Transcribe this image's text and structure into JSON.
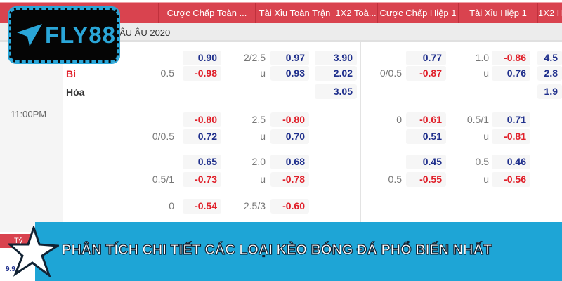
{
  "header": {
    "columns": [
      "Cược Chấp Toàn ...",
      "Tài Xỉu Toàn Trận",
      "1X2 Toà...",
      "Cược Chấp Hiệp 1",
      "Tài Xỉu Hiệp 1",
      "1X2 H"
    ]
  },
  "league": "ÂU ÂU 2020",
  "match": {
    "time": "11:00PM",
    "team": "Bi",
    "draw": "Hòa"
  },
  "logo": "FLY88",
  "rows": [
    {
      "hc": [
        "",
        "0.90"
      ],
      "ou": [
        "2/2.5",
        "0.97"
      ],
      "x12": "3.90",
      "h1hc": [
        "",
        "0.77"
      ],
      "h1ou": [
        "1.0",
        "-0.86"
      ],
      "h1x12": "4.5"
    },
    {
      "hc": [
        "0.5",
        "-0.98"
      ],
      "ou": [
        "u",
        "0.93"
      ],
      "x12": "2.02",
      "h1hc": [
        "0/0.5",
        "-0.87"
      ],
      "h1ou": [
        "u",
        "0.76"
      ],
      "h1x12": "2.8"
    },
    {
      "x12": "3.05",
      "h1x12": "1.9"
    },
    {
      "hc": [
        "",
        "-0.80"
      ],
      "ou": [
        "2.5",
        "-0.80"
      ],
      "h1hc": [
        "0",
        "-0.61"
      ],
      "h1ou": [
        "0.5/1",
        "0.71"
      ]
    },
    {
      "hc": [
        "0/0.5",
        "0.72"
      ],
      "ou": [
        "u",
        "0.70"
      ],
      "h1hc": [
        "",
        "0.51"
      ],
      "h1ou": [
        "u",
        "-0.81"
      ]
    },
    {
      "hc": [
        "",
        "0.65"
      ],
      "ou": [
        "2.0",
        "0.68"
      ],
      "h1hc": [
        "",
        "0.45"
      ],
      "h1ou": [
        "0.5",
        "0.46"
      ]
    },
    {
      "hc": [
        "0.5/1",
        "-0.73"
      ],
      "ou": [
        "u",
        "-0.78"
      ],
      "h1hc": [
        "0.5",
        "-0.55"
      ],
      "h1ou": [
        "u",
        "-0.56"
      ]
    },
    {
      "hc": [
        "0",
        "-0.54"
      ],
      "ou": [
        "2.5/3",
        "-0.60"
      ]
    }
  ],
  "banner": "PHÂN TÍCH CHI TIẾT CÁC LOẠI KÈO BÓNG ĐÁ PHỔ BIẾN NHẤT",
  "mini": {
    "header": "Tỷ",
    "value": "9.9"
  }
}
